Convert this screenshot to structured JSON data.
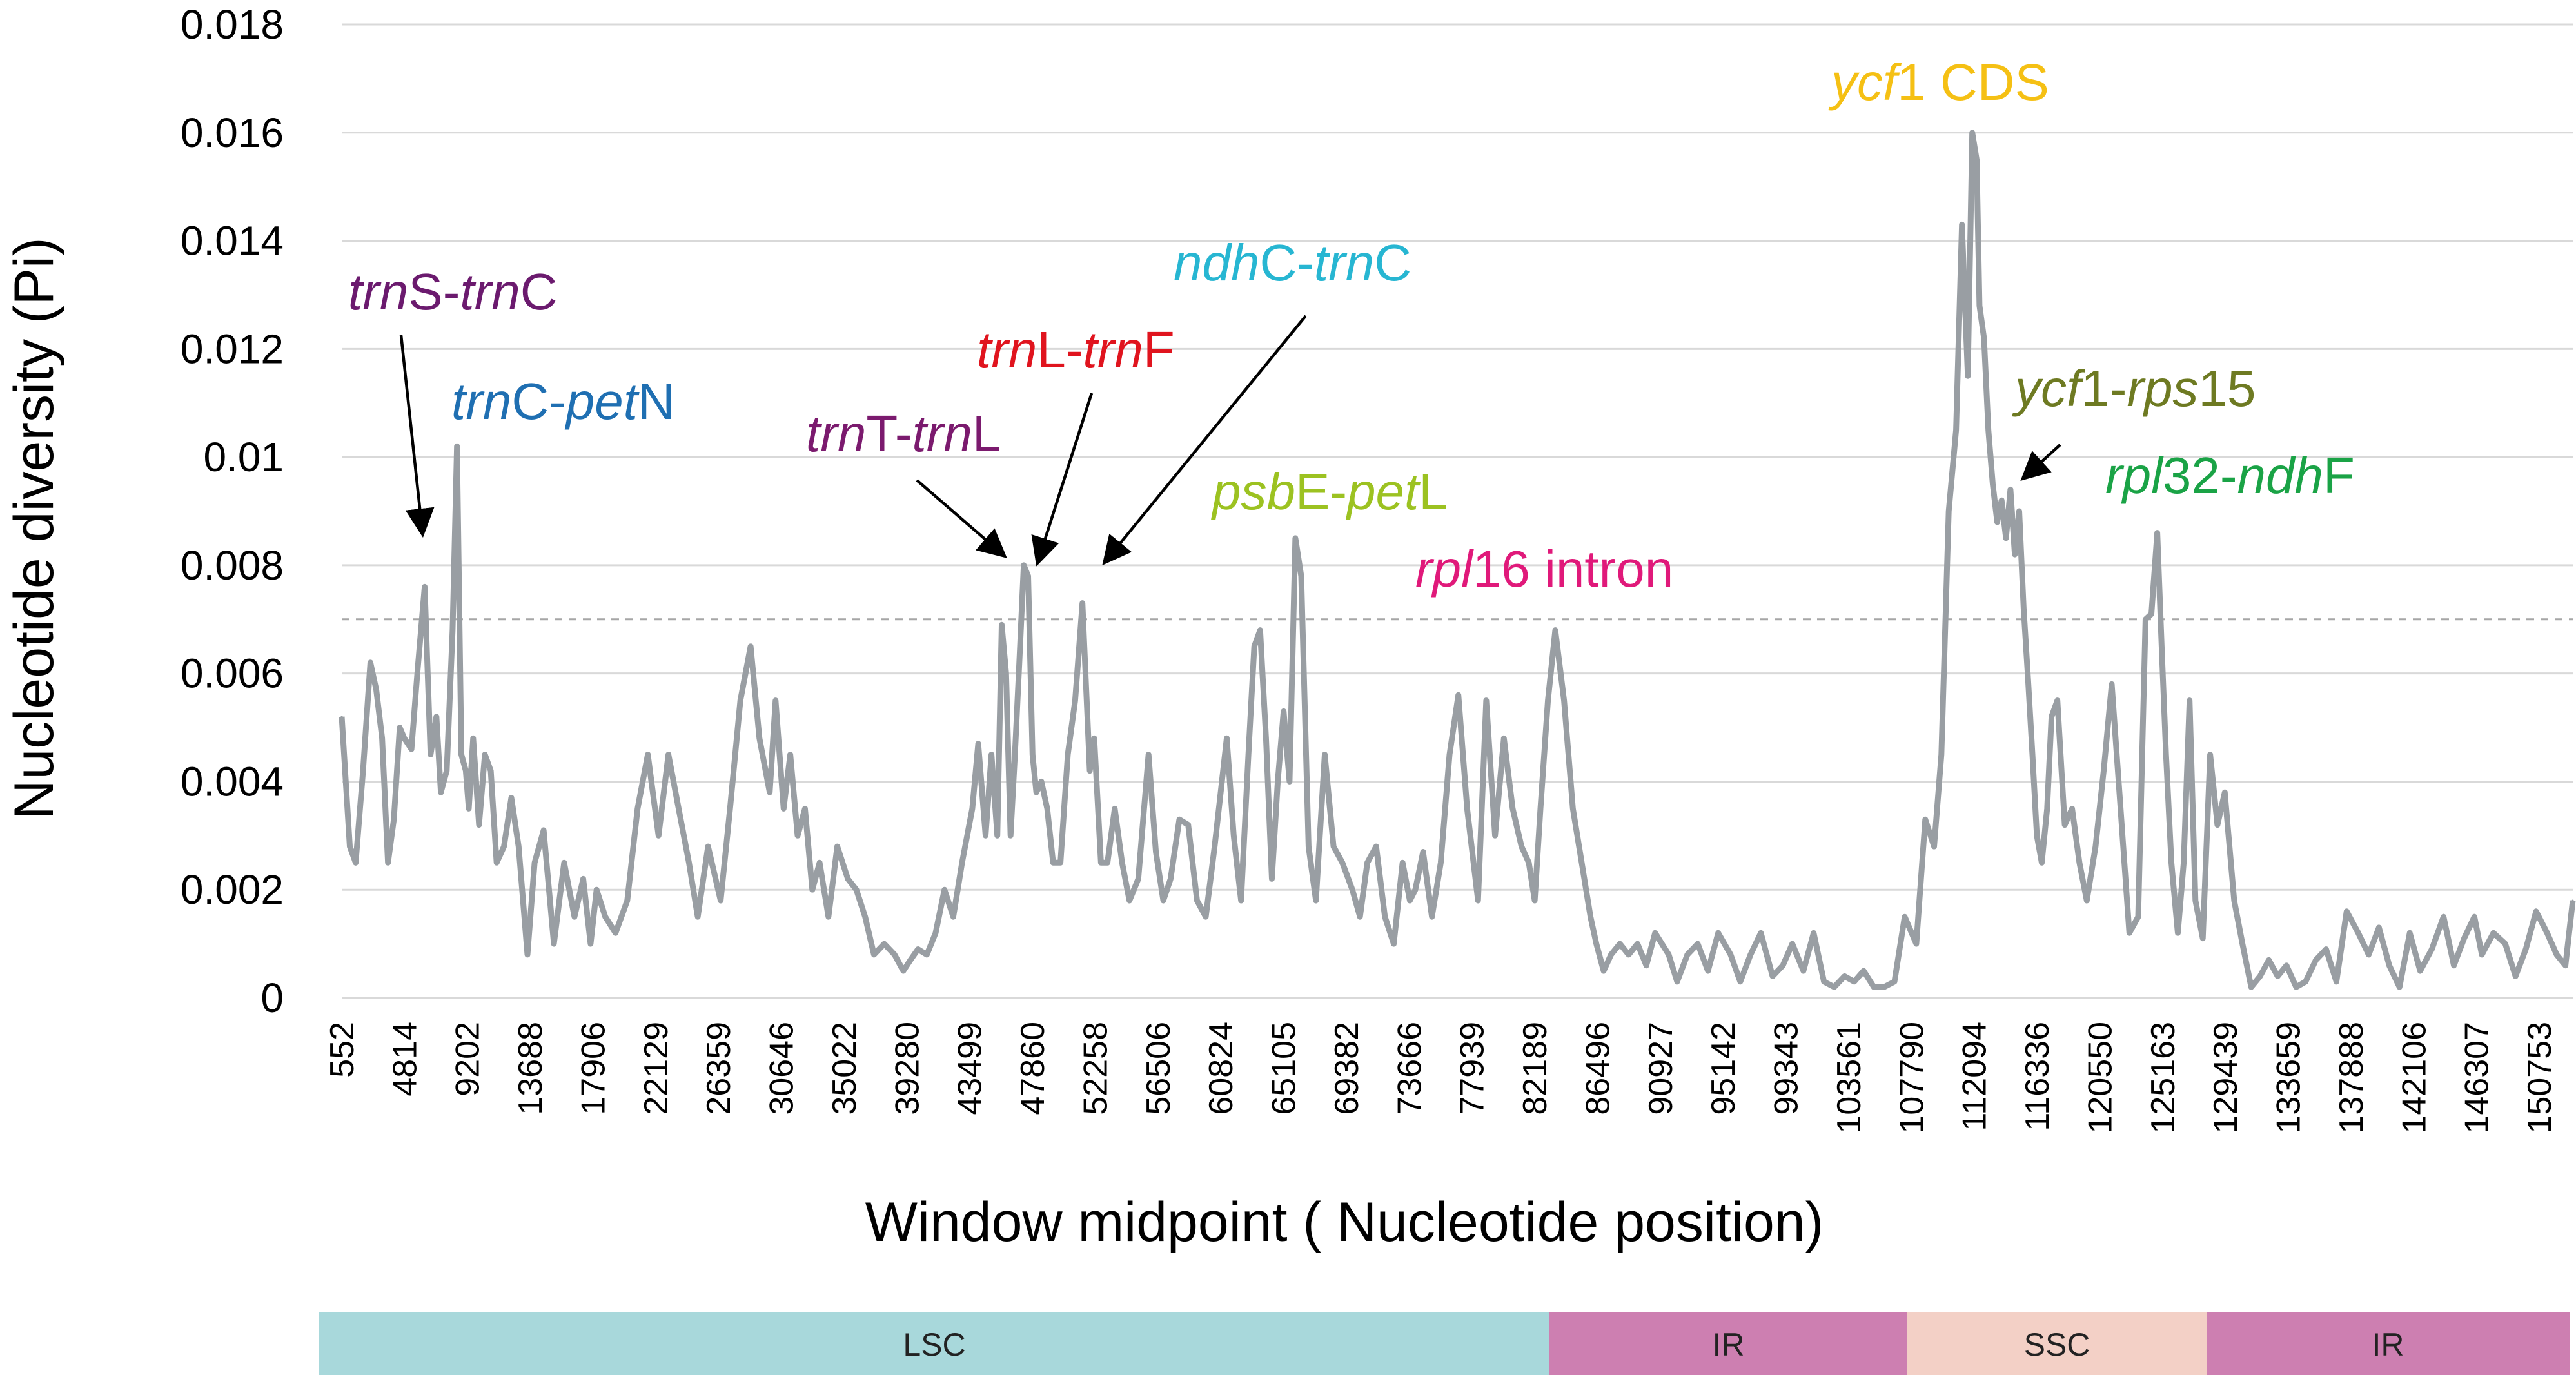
{
  "chart_data": {
    "type": "line",
    "ylabel": "Nucleotide diversity (Pi)",
    "xlabel": "Window midpoint ( Nucleotide position)",
    "ylim": [
      0,
      0.018
    ],
    "y_ticks": [
      "0",
      "0.002",
      "0.004",
      "0.006",
      "0.008",
      "0.01",
      "0.012",
      "0.014",
      "0.016",
      "0.018"
    ],
    "x_tick_labels": [
      "552",
      "4814",
      "9202",
      "13688",
      "17906",
      "22129",
      "26359",
      "30646",
      "35022",
      "39280",
      "43499",
      "47860",
      "52258",
      "56506",
      "60824",
      "65105",
      "69382",
      "73666",
      "77939",
      "82189",
      "86496",
      "90927",
      "95142",
      "99343",
      "103561",
      "107790",
      "112094",
      "116336",
      "120550",
      "125163",
      "129439",
      "133659",
      "137888",
      "142106",
      "146307",
      "150753"
    ],
    "xlim": [
      552,
      152500
    ],
    "grid": true,
    "threshold": 0.007,
    "series_color": "#999ea3",
    "series": [
      {
        "x": [
          552,
          1100,
          1500,
          2000,
          2500,
          2900,
          3300,
          3700,
          4100,
          4500,
          4814,
          5300,
          5700,
          6200,
          6600,
          7000,
          7300,
          7700,
          8100,
          8400,
          8700,
          9000,
          9202,
          9500,
          9900,
          10300,
          10700,
          11100,
          11600,
          12100,
          12600,
          13200,
          13688,
          14300,
          15000,
          15700,
          16400,
          17000,
          17500,
          17906,
          18500,
          19200,
          20000,
          20700,
          21400,
          22129,
          22800,
          23500,
          24200,
          24800,
          25500,
          26359,
          27000,
          27700,
          28400,
          29000,
          29700,
          30100,
          30646,
          31100,
          31600,
          32100,
          32600,
          33100,
          33700,
          34300,
          35022,
          35600,
          36200,
          36800,
          37500,
          38200,
          38800,
          39280,
          39800,
          40400,
          41000,
          41600,
          42200,
          42800,
          43499,
          43900,
          44400,
          44800,
          45200,
          45500,
          45800,
          46100,
          46400,
          46700,
          47000,
          47300,
          47600,
          47860,
          48200,
          48600,
          49000,
          49500,
          50000,
          50500,
          51000,
          51500,
          51800,
          52258,
          52700,
          53200,
          53700,
          54200,
          54800,
          55500,
          56000,
          56506,
          57000,
          57600,
          58200,
          58800,
          59400,
          60000,
          60824,
          61300,
          61800,
          62300,
          62700,
          63100,
          63500,
          63900,
          64300,
          64700,
          65105,
          65500,
          65900,
          66400,
          66900,
          67500,
          68100,
          68700,
          69382,
          69900,
          70400,
          71000,
          71600,
          72200,
          72800,
          73300,
          73666,
          74200,
          74800,
          75400,
          76000,
          76600,
          77200,
          77939,
          78500,
          79100,
          79700,
          80300,
          80900,
          81400,
          81800,
          82189,
          82700,
          83200,
          83800,
          84400,
          85000,
          85600,
          86000,
          86496,
          87000,
          87600,
          88200,
          88800,
          89400,
          90000,
          90927,
          91500,
          92200,
          92900,
          93600,
          94300,
          95142,
          95800,
          96500,
          97200,
          98000,
          98700,
          99343,
          100100,
          100800,
          101500,
          102200,
          102900,
          103561,
          104200,
          104900,
          105600,
          106300,
          107000,
          107790,
          108400,
          109000,
          109500,
          110000,
          110500,
          110900,
          111300,
          111600,
          111900,
          112094,
          112400,
          112700,
          113000,
          113300,
          113600,
          113900,
          114200,
          114500,
          114800,
          115100,
          115400,
          115700,
          116000,
          116336,
          116700,
          117000,
          117400,
          117900,
          118400,
          118900,
          119400,
          120000,
          120550,
          121100,
          121700,
          122300,
          122900,
          123400,
          123800,
          124200,
          124500,
          124800,
          125163,
          125600,
          126000,
          126400,
          126800,
          127300,
          127800,
          128300,
          128800,
          129439,
          130000,
          130600,
          131200,
          131800,
          132400,
          133000,
          133659,
          134300,
          135000,
          135700,
          136400,
          137100,
          137888,
          138600,
          139300,
          140000,
          140700,
          141400,
          142106,
          142900,
          143700,
          144400,
          145100,
          145800,
          146307,
          147100,
          147900,
          148600,
          149300,
          150000,
          150753,
          151400,
          152000,
          152500
        ],
        "y": [
          0.0052,
          0.0028,
          0.0025,
          0.0042,
          0.0062,
          0.0057,
          0.0048,
          0.0025,
          0.0033,
          0.005,
          0.0048,
          0.0046,
          0.006,
          0.0076,
          0.0045,
          0.0052,
          0.0038,
          0.0042,
          0.0068,
          0.0102,
          0.0045,
          0.0042,
          0.0035,
          0.0048,
          0.0032,
          0.0045,
          0.0042,
          0.0025,
          0.0028,
          0.0037,
          0.0028,
          0.0008,
          0.0025,
          0.0031,
          0.001,
          0.0025,
          0.0015,
          0.0022,
          0.001,
          0.002,
          0.0015,
          0.0012,
          0.0018,
          0.0035,
          0.0045,
          0.003,
          0.0045,
          0.0035,
          0.0025,
          0.0015,
          0.0028,
          0.0018,
          0.0035,
          0.0055,
          0.0065,
          0.0048,
          0.0038,
          0.0055,
          0.0035,
          0.0045,
          0.003,
          0.0035,
          0.002,
          0.0025,
          0.0015,
          0.0028,
          0.0022,
          0.002,
          0.0015,
          0.0008,
          0.001,
          0.0008,
          0.0005,
          0.0007,
          0.0009,
          0.0008,
          0.0012,
          0.002,
          0.0015,
          0.0025,
          0.0035,
          0.0047,
          0.003,
          0.0045,
          0.003,
          0.0069,
          0.006,
          0.003,
          0.0045,
          0.0062,
          0.008,
          0.0078,
          0.0045,
          0.0038,
          0.004,
          0.0035,
          0.0025,
          0.0025,
          0.0045,
          0.0055,
          0.0073,
          0.0042,
          0.0048,
          0.0025,
          0.0025,
          0.0035,
          0.0025,
          0.0018,
          0.0022,
          0.0045,
          0.0027,
          0.0018,
          0.0022,
          0.0033,
          0.0032,
          0.0018,
          0.0015,
          0.0028,
          0.0048,
          0.003,
          0.0018,
          0.0045,
          0.0065,
          0.0068,
          0.0048,
          0.0022,
          0.004,
          0.0053,
          0.004,
          0.0085,
          0.0078,
          0.0028,
          0.0018,
          0.0045,
          0.0028,
          0.0025,
          0.002,
          0.0015,
          0.0025,
          0.0028,
          0.0015,
          0.001,
          0.0025,
          0.0018,
          0.002,
          0.0027,
          0.0015,
          0.0025,
          0.0045,
          0.0056,
          0.0035,
          0.0018,
          0.0055,
          0.003,
          0.0048,
          0.0035,
          0.0028,
          0.0025,
          0.0018,
          0.0035,
          0.0055,
          0.0068,
          0.0055,
          0.0035,
          0.0025,
          0.0015,
          0.001,
          0.0005,
          0.0008,
          0.001,
          0.0008,
          0.001,
          0.0006,
          0.0012,
          0.0008,
          0.0003,
          0.0008,
          0.001,
          0.0005,
          0.0012,
          0.0008,
          0.0003,
          0.0008,
          0.0012,
          0.0004,
          0.0006,
          0.001,
          0.0005,
          0.0012,
          0.0003,
          0.0002,
          0.0004,
          0.0003,
          0.0005,
          0.0002,
          0.0002,
          0.0003,
          0.0015,
          0.001,
          0.0033,
          0.0028,
          0.0045,
          0.009,
          0.0105,
          0.0143,
          0.0115,
          0.016,
          0.0155,
          0.0128,
          0.0122,
          0.0105,
          0.0095,
          0.0088,
          0.0092,
          0.0085,
          0.0094,
          0.0082,
          0.009,
          0.0072,
          0.0059,
          0.0045,
          0.003,
          0.0025,
          0.0035,
          0.0052,
          0.0055,
          0.0032,
          0.0035,
          0.0025,
          0.0018,
          0.0028,
          0.0042,
          0.0058,
          0.0035,
          0.0012,
          0.0015,
          0.007,
          0.0071,
          0.0086,
          0.0065,
          0.0045,
          0.0025,
          0.0012,
          0.0025,
          0.0055,
          0.0018,
          0.0011,
          0.0045,
          0.0032,
          0.0038,
          0.0018,
          0.001,
          0.0002,
          0.0004,
          0.0007,
          0.0004,
          0.0006,
          0.0002,
          0.0003,
          0.0007,
          0.0009,
          0.0003,
          0.0016,
          0.0012,
          0.0008,
          0.0013,
          0.0006,
          0.0002,
          0.0012,
          0.0005,
          0.0009,
          0.0015,
          0.0006,
          0.0011,
          0.0015,
          0.0008,
          0.0012,
          0.001,
          0.0004,
          0.0009,
          0.0016,
          0.0012,
          0.0008,
          0.0006,
          0.0018
        ]
      }
    ],
    "annotations": [
      {
        "parts": [
          {
            "text": "trn",
            "italic": true
          },
          {
            "text": "S-",
            "italic": false
          },
          {
            "text": "trn",
            "italic": true
          },
          {
            "text": "C",
            "italic": false
          }
        ],
        "color": "#6b1a6e"
      },
      {
        "parts": [
          {
            "text": "trn",
            "italic": true
          },
          {
            "text": "C-",
            "italic": false
          },
          {
            "text": "pet",
            "italic": true
          },
          {
            "text": "N",
            "italic": false
          }
        ],
        "color": "#1f6fb2"
      },
      {
        "parts": [
          {
            "text": "trn",
            "italic": true
          },
          {
            "text": "T-",
            "italic": false
          },
          {
            "text": "trn",
            "italic": true
          },
          {
            "text": "L",
            "italic": false
          }
        ],
        "color": "#7b1a6e"
      },
      {
        "parts": [
          {
            "text": "trn",
            "italic": true
          },
          {
            "text": "L-",
            "italic": false
          },
          {
            "text": "trn",
            "italic": true
          },
          {
            "text": "F",
            "italic": false
          }
        ],
        "color": "#e0141e"
      },
      {
        "parts": [
          {
            "text": "ndh",
            "italic": true
          },
          {
            "text": "C-",
            "italic": false
          },
          {
            "text": "trn",
            "italic": true
          },
          {
            "text": "C",
            "italic": false
          }
        ],
        "color": "#27b6d2"
      },
      {
        "parts": [
          {
            "text": "psb",
            "italic": true
          },
          {
            "text": "E-",
            "italic": false
          },
          {
            "text": "pet",
            "italic": true
          },
          {
            "text": "L",
            "italic": false
          }
        ],
        "color": "#9cc221"
      },
      {
        "parts": [
          {
            "text": "rpl",
            "italic": true
          },
          {
            "text": "16 intron",
            "italic": false
          }
        ],
        "color": "#e0197a"
      },
      {
        "parts": [
          {
            "text": "ycf",
            "italic": true
          },
          {
            "text": "1 CDS",
            "italic": false
          }
        ],
        "color": "#f5c014"
      },
      {
        "parts": [
          {
            "text": "ycf",
            "italic": true
          },
          {
            "text": "1-",
            "italic": false
          },
          {
            "text": "rps",
            "italic": true
          },
          {
            "text": "15",
            "italic": false
          }
        ],
        "color": "#6e7a22"
      },
      {
        "parts": [
          {
            "text": "rpl",
            "italic": true
          },
          {
            "text": "32-",
            "italic": false
          },
          {
            "text": "ndh",
            "italic": true
          },
          {
            "text": "F",
            "italic": false
          }
        ],
        "color": "#1aa346"
      }
    ],
    "regions": [
      {
        "label": "LSC",
        "color": "#a8d8db"
      },
      {
        "label": "IR",
        "color": "#cd7fb1"
      },
      {
        "label": "SSC",
        "color": "#f3d0c6"
      },
      {
        "label": "IR",
        "color": "#cd7fb1"
      }
    ]
  }
}
